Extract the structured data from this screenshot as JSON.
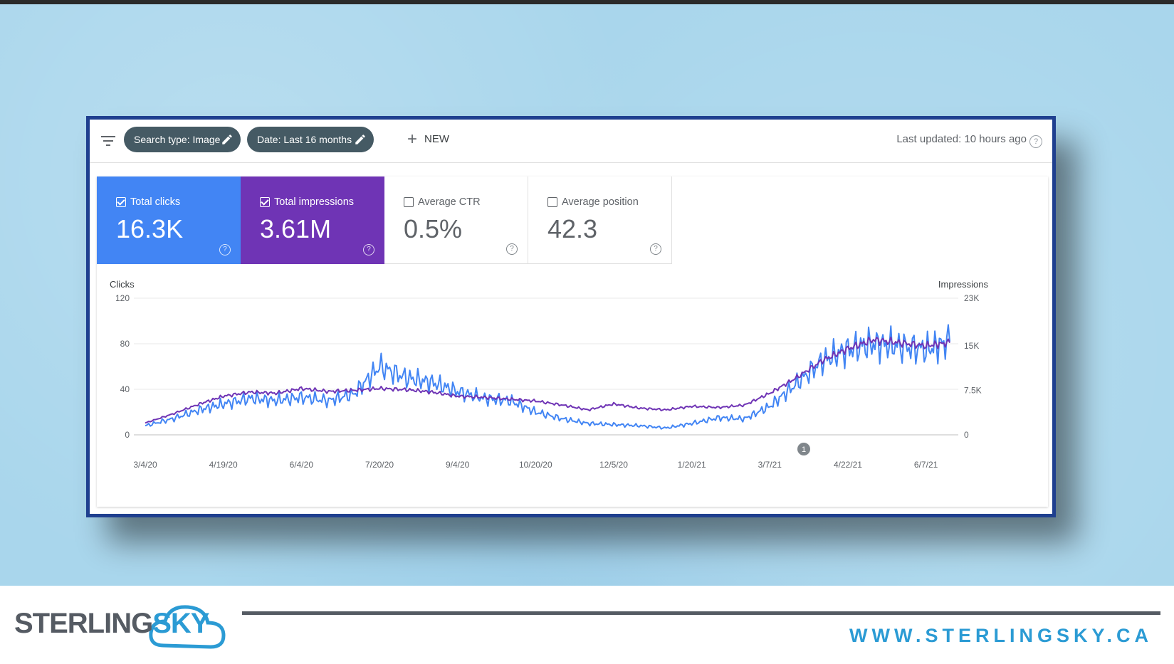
{
  "toolbar": {
    "chip_search_type": "Search type: Image",
    "chip_date": "Date: Last 16 months",
    "new_label": "NEW",
    "last_updated": "Last updated: 10 hours ago"
  },
  "metrics": [
    {
      "label": "Total clicks",
      "value": "16.3K",
      "checked": true
    },
    {
      "label": "Total impressions",
      "value": "3.61M",
      "checked": true
    },
    {
      "label": "Average CTR",
      "value": "0.5%",
      "checked": false
    },
    {
      "label": "Average position",
      "value": "42.3",
      "checked": false
    }
  ],
  "annotation_marker": "1",
  "colors": {
    "clicks": "#4285f4",
    "impressions": "#6f34b5",
    "panel_border": "#1f3f8f",
    "brand": "#2b9bd4"
  },
  "chart_data": {
    "type": "line",
    "xlabel": "",
    "ylabel": "Clicks",
    "y2label": "Impressions",
    "ylim": [
      0,
      120
    ],
    "y2lim": [
      0,
      23000
    ],
    "y_ticks": [
      "120",
      "80",
      "40",
      "0"
    ],
    "y2_ticks": [
      "23K",
      "15K",
      "7.5K",
      "0"
    ],
    "x_ticks": [
      "3/4/20",
      "4/19/20",
      "6/4/20",
      "7/20/20",
      "9/4/20",
      "10/20/20",
      "12/5/20",
      "1/20/21",
      "3/7/21",
      "4/22/21",
      "6/7/21"
    ],
    "x_range": [
      "3/4/20",
      "6/21/21"
    ],
    "grid": true,
    "series": [
      {
        "name": "Clicks",
        "axis": "left",
        "color": "#4285f4",
        "x": [
          "3/4/20",
          "3/20/20",
          "4/5/20",
          "4/19/20",
          "5/5/20",
          "5/20/20",
          "6/4/20",
          "6/20/20",
          "7/5/20",
          "7/20/20",
          "8/5/20",
          "8/20/20",
          "9/4/20",
          "9/20/20",
          "10/5/20",
          "10/20/20",
          "11/5/20",
          "11/20/20",
          "12/5/20",
          "12/20/20",
          "1/5/21",
          "1/20/21",
          "2/5/21",
          "2/20/21",
          "3/7/21",
          "3/22/21",
          "4/7/21",
          "4/22/21",
          "5/7/21",
          "5/22/21",
          "6/7/21",
          "6/21/21"
        ],
        "values": [
          8,
          14,
          22,
          27,
          32,
          30,
          33,
          30,
          36,
          60,
          50,
          46,
          38,
          32,
          30,
          20,
          14,
          10,
          9,
          8,
          6,
          10,
          15,
          14,
          25,
          44,
          65,
          75,
          80,
          78,
          75,
          82
        ]
      },
      {
        "name": "Impressions",
        "axis": "right",
        "color": "#6f34b5",
        "x": [
          "3/4/20",
          "3/20/20",
          "4/5/20",
          "4/19/20",
          "5/5/20",
          "5/20/20",
          "6/4/20",
          "6/20/20",
          "7/5/20",
          "7/20/20",
          "8/5/20",
          "8/20/20",
          "9/4/20",
          "9/20/20",
          "10/5/20",
          "10/20/20",
          "11/5/20",
          "11/20/20",
          "12/5/20",
          "12/20/20",
          "1/5/21",
          "1/20/21",
          "2/5/21",
          "2/20/21",
          "3/7/21",
          "3/22/21",
          "4/7/21",
          "4/22/21",
          "5/7/21",
          "5/22/21",
          "6/7/21",
          "6/21/21"
        ],
        "values": [
          2000,
          3500,
          5200,
          6500,
          7200,
          7000,
          7800,
          7300,
          7500,
          7800,
          7600,
          7200,
          6500,
          6300,
          6000,
          5700,
          5000,
          4200,
          5200,
          4500,
          4200,
          4800,
          4600,
          5000,
          7000,
          9500,
          12500,
          14500,
          16000,
          15500,
          15000,
          15500
        ]
      }
    ]
  },
  "footer": {
    "logo_text": "STERLINGSKY",
    "url": "WWW.STERLINGSKY.CA"
  }
}
